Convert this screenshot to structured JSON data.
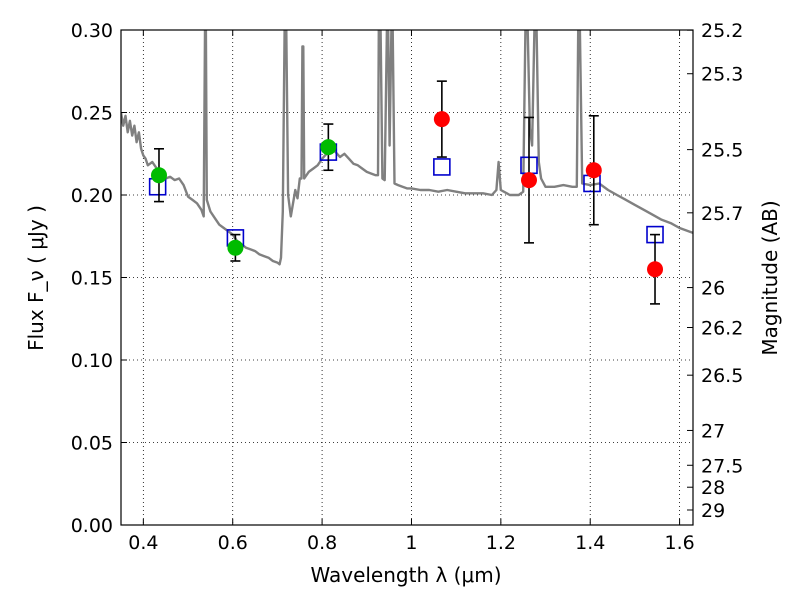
{
  "chart_data": {
    "type": "scatter",
    "title": "",
    "xlabel": "Wavelength  λ (μm)",
    "ylabel": "Flux  F_ν  ( μJy )",
    "y2label": "Magnitude (AB)",
    "xlim": [
      0.35,
      1.63
    ],
    "ylim": [
      0.0,
      0.3
    ],
    "grid": true,
    "x_ticks": [
      0.4,
      0.6,
      0.8,
      1.0,
      1.2,
      1.4,
      1.6
    ],
    "x_tick_labels": [
      "0.4",
      "0.6",
      "0.8",
      "1",
      "1.2",
      "1.4",
      "1.6"
    ],
    "y_ticks": [
      0.0,
      0.05,
      0.1,
      0.15,
      0.2,
      0.25,
      0.3
    ],
    "y_tick_labels": [
      "0.00",
      "0.05",
      "0.10",
      "0.15",
      "0.20",
      "0.25",
      "0.30"
    ],
    "y2_ticks": [
      {
        "label": "25.2",
        "flux": 0.2999
      },
      {
        "label": "25.3",
        "flux": 0.2735
      },
      {
        "label": "25.5",
        "flux": 0.2275
      },
      {
        "label": "25.7",
        "flux": 0.1892
      },
      {
        "label": "26",
        "flux": 0.1439
      },
      {
        "label": "26.2",
        "flux": 0.1197
      },
      {
        "label": "26.5",
        "flux": 0.0908
      },
      {
        "label": "27",
        "flux": 0.0573
      },
      {
        "label": "27.5",
        "flux": 0.0362
      },
      {
        "label": "28",
        "flux": 0.0229
      },
      {
        "label": "29",
        "flux": 0.0091
      }
    ],
    "series": [
      {
        "marker": "line",
        "color": "#808080",
        "points": [
          [
            0.35,
            0.25
          ],
          [
            0.355,
            0.242
          ],
          [
            0.36,
            0.248
          ],
          [
            0.365,
            0.238
          ],
          [
            0.37,
            0.245
          ],
          [
            0.375,
            0.236
          ],
          [
            0.38,
            0.242
          ],
          [
            0.385,
            0.232
          ],
          [
            0.39,
            0.238
          ],
          [
            0.395,
            0.228
          ],
          [
            0.4,
            0.224
          ],
          [
            0.405,
            0.222
          ],
          [
            0.41,
            0.218
          ],
          [
            0.42,
            0.22
          ],
          [
            0.43,
            0.216
          ],
          [
            0.44,
            0.214
          ],
          [
            0.45,
            0.21
          ],
          [
            0.46,
            0.211
          ],
          [
            0.47,
            0.209
          ],
          [
            0.48,
            0.21
          ],
          [
            0.49,
            0.206
          ],
          [
            0.5,
            0.199
          ],
          [
            0.51,
            0.197
          ],
          [
            0.52,
            0.195
          ],
          [
            0.53,
            0.191
          ],
          [
            0.535,
            0.187
          ],
          [
            0.538,
            0.3
          ],
          [
            0.54,
            0.3
          ],
          [
            0.542,
            0.197
          ],
          [
            0.55,
            0.19
          ],
          [
            0.56,
            0.186
          ],
          [
            0.57,
            0.182
          ],
          [
            0.58,
            0.18
          ],
          [
            0.59,
            0.178
          ],
          [
            0.6,
            0.176
          ],
          [
            0.61,
            0.172
          ],
          [
            0.62,
            0.17
          ],
          [
            0.63,
            0.168
          ],
          [
            0.64,
            0.167
          ],
          [
            0.65,
            0.166
          ],
          [
            0.66,
            0.164
          ],
          [
            0.67,
            0.163
          ],
          [
            0.68,
            0.162
          ],
          [
            0.69,
            0.16
          ],
          [
            0.7,
            0.159
          ],
          [
            0.705,
            0.158
          ],
          [
            0.708,
            0.162
          ],
          [
            0.712,
            0.19
          ],
          [
            0.716,
            0.3
          ],
          [
            0.72,
            0.3
          ],
          [
            0.724,
            0.2
          ],
          [
            0.73,
            0.187
          ],
          [
            0.74,
            0.203
          ],
          [
            0.745,
            0.198
          ],
          [
            0.75,
            0.21
          ],
          [
            0.754,
            0.21
          ],
          [
            0.756,
            0.29
          ],
          [
            0.758,
            0.29
          ],
          [
            0.76,
            0.21
          ],
          [
            0.77,
            0.214
          ],
          [
            0.78,
            0.216
          ],
          [
            0.79,
            0.218
          ],
          [
            0.8,
            0.222
          ],
          [
            0.81,
            0.225
          ],
          [
            0.82,
            0.229
          ],
          [
            0.83,
            0.226
          ],
          [
            0.84,
            0.223
          ],
          [
            0.85,
            0.225
          ],
          [
            0.86,
            0.222
          ],
          [
            0.87,
            0.219
          ],
          [
            0.88,
            0.218
          ],
          [
            0.89,
            0.216
          ],
          [
            0.9,
            0.214
          ],
          [
            0.91,
            0.213
          ],
          [
            0.92,
            0.212
          ],
          [
            0.925,
            0.212
          ],
          [
            0.927,
            0.3
          ],
          [
            0.931,
            0.3
          ],
          [
            0.935,
            0.21
          ],
          [
            0.94,
            0.209
          ],
          [
            0.945,
            0.3
          ],
          [
            0.948,
            0.3
          ],
          [
            0.951,
            0.23
          ],
          [
            0.955,
            0.3
          ],
          [
            0.958,
            0.3
          ],
          [
            0.962,
            0.207
          ],
          [
            0.97,
            0.206
          ],
          [
            0.98,
            0.205
          ],
          [
            0.99,
            0.204
          ],
          [
            1.0,
            0.204
          ],
          [
            1.02,
            0.203
          ],
          [
            1.04,
            0.203
          ],
          [
            1.06,
            0.202
          ],
          [
            1.08,
            0.203
          ],
          [
            1.1,
            0.202
          ],
          [
            1.12,
            0.201
          ],
          [
            1.14,
            0.201
          ],
          [
            1.16,
            0.201
          ],
          [
            1.18,
            0.2
          ],
          [
            1.19,
            0.203
          ],
          [
            1.195,
            0.22
          ],
          [
            1.2,
            0.203
          ],
          [
            1.22,
            0.2
          ],
          [
            1.24,
            0.2
          ],
          [
            1.25,
            0.202
          ],
          [
            1.255,
            0.3
          ],
          [
            1.26,
            0.3
          ],
          [
            1.265,
            0.24
          ],
          [
            1.27,
            0.23
          ],
          [
            1.275,
            0.3
          ],
          [
            1.28,
            0.3
          ],
          [
            1.285,
            0.22
          ],
          [
            1.29,
            0.21
          ],
          [
            1.3,
            0.205
          ],
          [
            1.32,
            0.205
          ],
          [
            1.34,
            0.206
          ],
          [
            1.36,
            0.205
          ],
          [
            1.37,
            0.205
          ],
          [
            1.373,
            0.3
          ],
          [
            1.377,
            0.3
          ],
          [
            1.382,
            0.207
          ],
          [
            1.4,
            0.206
          ],
          [
            1.42,
            0.207
          ],
          [
            1.44,
            0.203
          ],
          [
            1.46,
            0.2
          ],
          [
            1.48,
            0.197
          ],
          [
            1.5,
            0.194
          ],
          [
            1.52,
            0.191
          ],
          [
            1.54,
            0.188
          ],
          [
            1.56,
            0.185
          ],
          [
            1.58,
            0.183
          ],
          [
            1.6,
            0.18
          ],
          [
            1.62,
            0.178
          ],
          [
            1.63,
            0.177
          ]
        ]
      },
      {
        "marker": "open-square",
        "color": "#0000cc",
        "points": [
          [
            0.432,
            0.205
          ],
          [
            0.606,
            0.174
          ],
          [
            0.814,
            0.226
          ],
          [
            1.068,
            0.217
          ],
          [
            1.263,
            0.218
          ],
          [
            1.404,
            0.207
          ],
          [
            1.545,
            0.176
          ]
        ]
      },
      {
        "marker": "filled-circle",
        "color": "#00bb00",
        "points": [
          [
            0.435,
            0.212
          ],
          [
            0.606,
            0.168
          ],
          [
            0.814,
            0.229
          ]
        ],
        "yerr": [
          0.016,
          0.008,
          0.014
        ]
      },
      {
        "marker": "filled-circle",
        "color": "#ff0000",
        "points": [
          [
            1.068,
            0.246
          ],
          [
            1.263,
            0.209
          ],
          [
            1.408,
            0.215
          ],
          [
            1.545,
            0.155
          ]
        ],
        "yerr": [
          0.023,
          0.038,
          0.033,
          0.021
        ]
      }
    ]
  }
}
